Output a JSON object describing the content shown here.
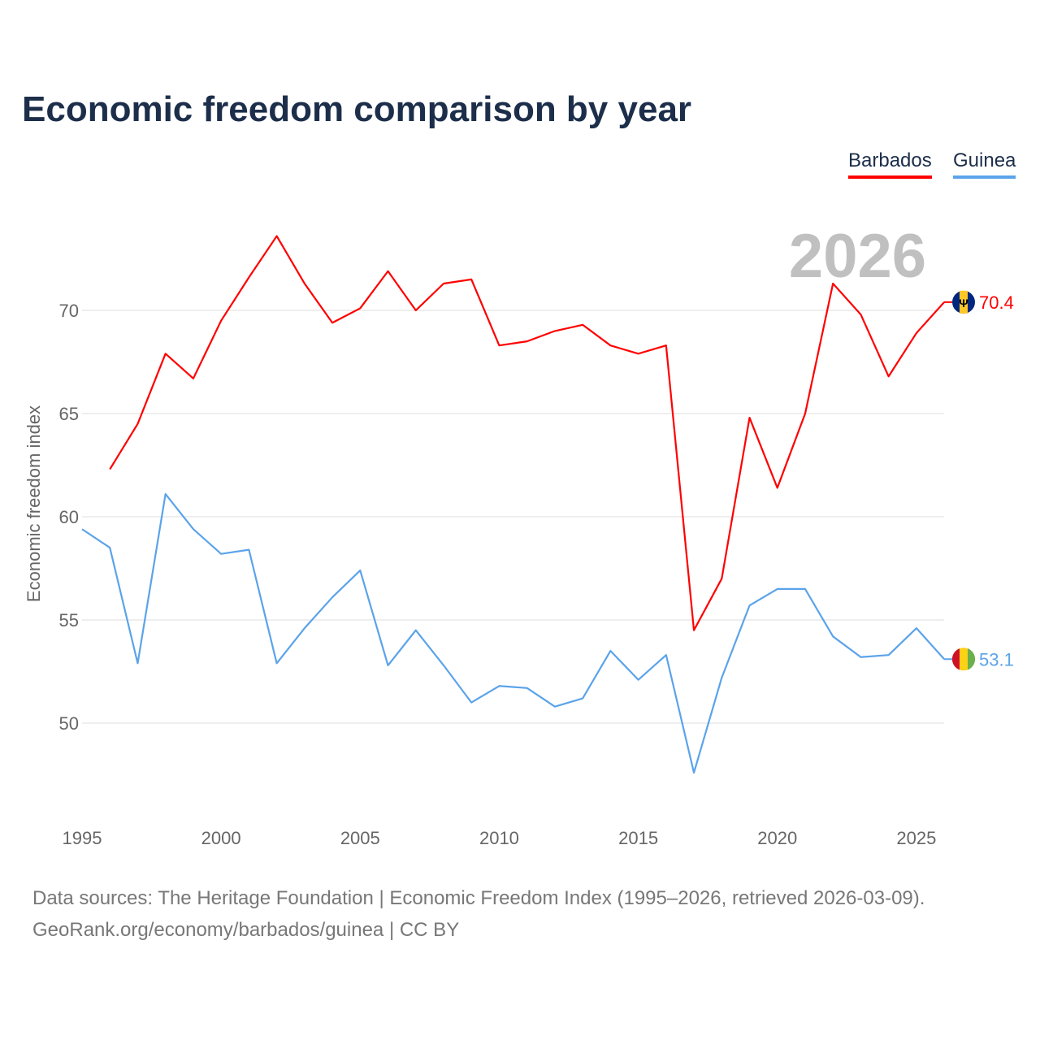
{
  "chart_data": {
    "type": "line",
    "title": "Economic freedom comparison by year",
    "ylabel": "Economic freedom index",
    "xlabel": "",
    "ylim": [
      45,
      75
    ],
    "xlim": [
      1995,
      2026
    ],
    "yticks": [
      50,
      55,
      60,
      65,
      70
    ],
    "xticks": [
      1995,
      2000,
      2005,
      2010,
      2015,
      2020,
      2025
    ],
    "grid": true,
    "year_label": "2026",
    "legend_placement": "top-right",
    "series": [
      {
        "name": "Barbados",
        "color": "#ff0000",
        "end_label": "70.4",
        "x": [
          1996,
          1997,
          1998,
          1999,
          2000,
          2001,
          2002,
          2003,
          2004,
          2005,
          2006,
          2007,
          2008,
          2009,
          2010,
          2011,
          2012,
          2013,
          2014,
          2015,
          2016,
          2017,
          2018,
          2019,
          2020,
          2021,
          2022,
          2023,
          2024,
          2025,
          2026
        ],
        "values": [
          62.3,
          64.5,
          67.9,
          66.7,
          69.5,
          71.6,
          73.6,
          71.3,
          69.4,
          70.1,
          71.9,
          70.0,
          71.3,
          71.5,
          68.3,
          68.5,
          69.0,
          69.3,
          68.3,
          67.9,
          68.3,
          54.5,
          57.0,
          64.8,
          61.4,
          65.0,
          71.3,
          69.8,
          66.8,
          68.9,
          70.4
        ]
      },
      {
        "name": "Guinea",
        "color": "#5ba3ea",
        "end_label": "53.1",
        "x": [
          1995,
          1996,
          1997,
          1998,
          1999,
          2000,
          2001,
          2002,
          2003,
          2004,
          2005,
          2006,
          2007,
          2008,
          2009,
          2010,
          2011,
          2012,
          2013,
          2014,
          2015,
          2016,
          2017,
          2018,
          2019,
          2020,
          2021,
          2022,
          2023,
          2024,
          2025,
          2026
        ],
        "values": [
          59.4,
          58.5,
          52.9,
          61.1,
          59.4,
          58.2,
          58.4,
          52.9,
          54.6,
          56.1,
          57.4,
          52.8,
          54.5,
          52.8,
          51.0,
          51.8,
          51.7,
          50.8,
          51.2,
          53.5,
          52.1,
          53.3,
          47.6,
          52.2,
          55.7,
          56.5,
          56.5,
          54.2,
          53.2,
          53.3,
          54.6,
          53.1
        ]
      }
    ]
  },
  "source_line1": "Data sources: The Heritage Foundation | Economic Freedom Index (1995–2026, retrieved 2026-03-09).",
  "source_line2": "GeoRank.org/economy/barbados/guinea | CC BY"
}
